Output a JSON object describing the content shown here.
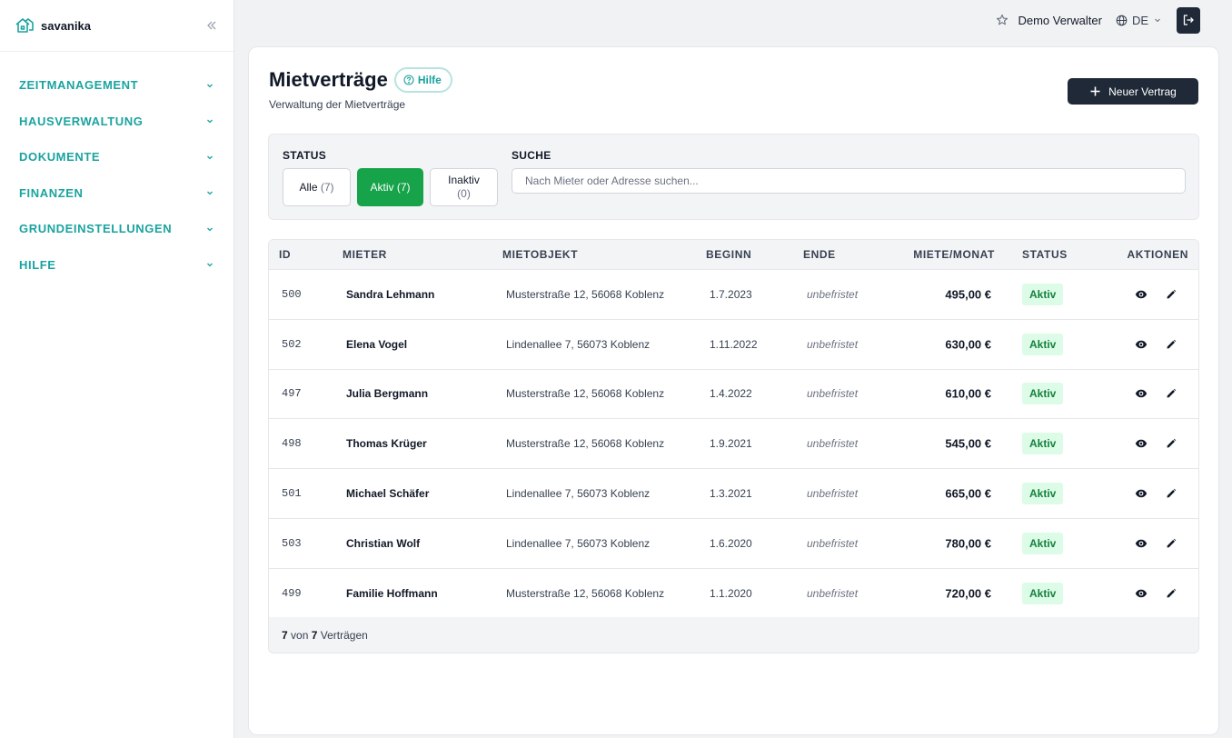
{
  "brand": {
    "name": "savanika"
  },
  "sidebar": {
    "items": [
      {
        "label": "ZEITMANAGEMENT"
      },
      {
        "label": "HAUSVERWALTUNG"
      },
      {
        "label": "DOKUMENTE"
      },
      {
        "label": "FINANZEN"
      },
      {
        "label": "GRUNDEINSTELLUNGEN"
      },
      {
        "label": "HILFE"
      }
    ]
  },
  "topbar": {
    "user": "Demo Verwalter",
    "language": "DE"
  },
  "page": {
    "title": "Mietverträge",
    "help": "Hilfe",
    "subtitle": "Verwaltung der Mietverträge",
    "new_button": "Neuer Vertrag"
  },
  "filters": {
    "status_label": "STATUS",
    "search_label": "SUCHE",
    "chips": [
      {
        "label": "Alle",
        "count": "(7)"
      },
      {
        "label": "Aktiv",
        "count": "(7)"
      },
      {
        "label": "Inaktiv",
        "count": "(0)"
      }
    ],
    "search_placeholder": "Nach Mieter oder Adresse suchen..."
  },
  "table": {
    "headers": [
      "ID",
      "MIETER",
      "MIETOBJEKT",
      "BEGINN",
      "ENDE",
      "MIETE/MONAT",
      "STATUS",
      "AKTIONEN"
    ],
    "rows": [
      {
        "id": "500",
        "mieter": "Sandra Lehmann",
        "objekt": "Musterstraße 12, 56068 Koblenz",
        "beginn": "1.7.2023",
        "ende": "unbefristet",
        "miete": "495,00 €",
        "status": "Aktiv"
      },
      {
        "id": "502",
        "mieter": "Elena Vogel",
        "objekt": "Lindenallee 7, 56073 Koblenz",
        "beginn": "1.11.2022",
        "ende": "unbefristet",
        "miete": "630,00 €",
        "status": "Aktiv"
      },
      {
        "id": "497",
        "mieter": "Julia Bergmann",
        "objekt": "Musterstraße 12, 56068 Koblenz",
        "beginn": "1.4.2022",
        "ende": "unbefristet",
        "miete": "610,00 €",
        "status": "Aktiv"
      },
      {
        "id": "498",
        "mieter": "Thomas Krüger",
        "objekt": "Musterstraße 12, 56068 Koblenz",
        "beginn": "1.9.2021",
        "ende": "unbefristet",
        "miete": "545,00 €",
        "status": "Aktiv"
      },
      {
        "id": "501",
        "mieter": "Michael Schäfer",
        "objekt": "Lindenallee 7, 56073 Koblenz",
        "beginn": "1.3.2021",
        "ende": "unbefristet",
        "miete": "665,00 €",
        "status": "Aktiv"
      },
      {
        "id": "503",
        "mieter": "Christian Wolf",
        "objekt": "Lindenallee 7, 56073 Koblenz",
        "beginn": "1.6.2020",
        "ende": "unbefristet",
        "miete": "780,00 €",
        "status": "Aktiv"
      },
      {
        "id": "499",
        "mieter": "Familie Hoffmann",
        "objekt": "Musterstraße 12, 56068 Koblenz",
        "beginn": "1.1.2020",
        "ende": "unbefristet",
        "miete": "720,00 €",
        "status": "Aktiv"
      }
    ],
    "footer": {
      "shown": "7",
      "sep": "von",
      "total": "7",
      "suffix": "Verträgen"
    }
  },
  "colors": {
    "accent": "#1aa3a0",
    "active_chip": "#16a34a",
    "dark_button": "#1f2937",
    "status_bg": "#dcfce7",
    "status_text": "#15803d"
  },
  "icons": [
    "house-logo-icon",
    "collapse-sidebar-icon",
    "chevron-down-icon",
    "star-icon",
    "globe-icon",
    "logout-icon",
    "help-circle-icon",
    "plus-icon",
    "eye-icon",
    "pencil-icon"
  ]
}
